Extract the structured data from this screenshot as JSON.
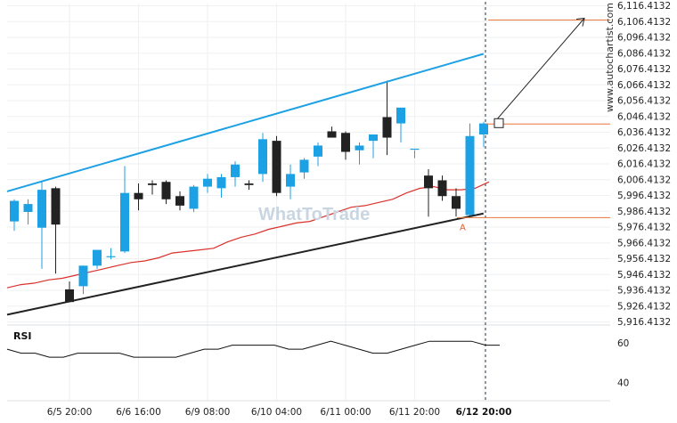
{
  "chart_data": {
    "type": "candlestick",
    "y_ticks": [
      "6,116.4132",
      "6,106.4132",
      "6,096.4132",
      "6,086.4132",
      "6,076.4132",
      "6,066.4132",
      "6,056.4132",
      "6,046.4132",
      "6,036.4132",
      "6,026.4132",
      "6,016.4132",
      "6,006.4132",
      "5,996.4132",
      "5,986.4132",
      "5,976.4132",
      "5,966.4132",
      "5,956.4132",
      "5,946.4132",
      "5,936.4132",
      "5,926.4132",
      "5,916.4132"
    ],
    "y_tick_values": [
      6116.4132,
      6106.4132,
      6096.4132,
      6086.4132,
      6076.4132,
      6066.4132,
      6056.4132,
      6046.4132,
      6036.4132,
      6026.4132,
      6016.4132,
      6006.4132,
      5996.4132,
      5986.4132,
      5976.4132,
      5966.4132,
      5956.4132,
      5946.4132,
      5936.4132,
      5926.4132,
      5916.4132
    ],
    "ylim": [
      5911.0,
      6120.0
    ],
    "x_labels": [
      "6/5 20:00",
      "6/6 16:00",
      "6/9 08:00",
      "6/10 04:00",
      "6/11 00:00",
      "6/11 20:00",
      "6/12 20:00"
    ],
    "x_label_index": [
      4,
      9,
      14,
      19,
      24,
      29,
      34
    ],
    "highlighted_x_label": "6/12 20:00",
    "candles": [
      {
        "o": 5980,
        "h": 5994,
        "l": 5974,
        "c": 5993
      },
      {
        "o": 5986,
        "h": 5994,
        "l": 5978,
        "c": 5991
      },
      {
        "o": 5976,
        "h": 6005,
        "l": 5950,
        "c": 6000
      },
      {
        "o": 6001,
        "h": 6002,
        "l": 5947,
        "c": 5978
      },
      {
        "o": 5937,
        "h": 5942,
        "l": 5930,
        "c": 5929
      },
      {
        "o": 5939,
        "h": 5952,
        "l": 5934,
        "c": 5952
      },
      {
        "o": 5952,
        "h": 5962,
        "l": 5950,
        "c": 5962
      },
      {
        "o": 5958,
        "h": 5963,
        "l": 5956,
        "c": 5958
      },
      {
        "o": 5961,
        "h": 6015,
        "l": 5960,
        "c": 5998
      },
      {
        "o": 5998,
        "h": 6004,
        "l": 5987,
        "c": 5994
      },
      {
        "o": 6004,
        "h": 6006,
        "l": 5997,
        "c": 6003
      },
      {
        "o": 6005,
        "h": 6006,
        "l": 5991,
        "c": 5994
      },
      {
        "o": 5996,
        "h": 5999,
        "l": 5987,
        "c": 5990
      },
      {
        "o": 5988,
        "h": 6003,
        "l": 5986,
        "c": 6002
      },
      {
        "o": 6002,
        "h": 6010,
        "l": 5998,
        "c": 6007
      },
      {
        "o": 6001,
        "h": 6010,
        "l": 5995,
        "c": 6008
      },
      {
        "o": 6008,
        "h": 6018,
        "l": 6002,
        "c": 6016
      },
      {
        "o": 6004,
        "h": 6006,
        "l": 6000,
        "c": 6003
      },
      {
        "o": 6010,
        "h": 6036,
        "l": 6005,
        "c": 6032
      },
      {
        "o": 6031,
        "h": 6034,
        "l": 5996,
        "c": 5998
      },
      {
        "o": 6002,
        "h": 6016,
        "l": 5994,
        "c": 6010
      },
      {
        "o": 6011,
        "h": 6020,
        "l": 6007,
        "c": 6019
      },
      {
        "o": 6021,
        "h": 6030,
        "l": 6015,
        "c": 6028
      },
      {
        "o": 6037,
        "h": 6040,
        "l": 6034,
        "c": 6033
      },
      {
        "o": 6036,
        "h": 6037,
        "l": 6019,
        "c": 6024
      },
      {
        "o": 6025,
        "h": 6030,
        "l": 6016,
        "c": 6028
      },
      {
        "o": 6031,
        "h": 6034,
        "l": 6020,
        "c": 6035
      },
      {
        "o": 6046,
        "h": 6069,
        "l": 6022,
        "c": 6033
      },
      {
        "o": 6042,
        "h": 6051,
        "l": 6030,
        "c": 6052
      },
      {
        "o": 6026,
        "h": 6025,
        "l": 6020,
        "c": 6026
      },
      {
        "o": 6009,
        "h": 6013,
        "l": 5983,
        "c": 6001
      },
      {
        "o": 6006,
        "h": 6009,
        "l": 5993,
        "c": 5996
      },
      {
        "o": 5996,
        "h": 6001,
        "l": 5983,
        "c": 5988
      },
      {
        "o": 5984,
        "h": 6042,
        "l": 5983,
        "c": 6034
      },
      {
        "o": 6035,
        "h": 6043,
        "l": 6027,
        "c": 6042
      }
    ],
    "moving_average": [
      5938,
      5940,
      5941,
      5943,
      5944,
      5946,
      5948,
      5950,
      5952,
      5954,
      5955,
      5957,
      5960,
      5961,
      5962,
      5963,
      5967,
      5970,
      5972,
      5975,
      5977,
      5979,
      5980,
      5983,
      5986,
      5989,
      5990,
      5992,
      5994,
      5998,
      6001,
      6002,
      6000,
      6000,
      6001,
      6005
    ],
    "channel_upper": {
      "from": [
        0,
        5999
      ],
      "to": [
        34.5,
        6086
      ]
    },
    "channel_lower": {
      "from": [
        0,
        5921
      ],
      "to": [
        34.5,
        5985
      ]
    },
    "target_level": 6107.4,
    "current_level": 6041.6,
    "support_level": 5982.4,
    "point_label": "A",
    "rsi": {
      "label": "RSI",
      "y_ticks": [
        "60",
        "40"
      ],
      "y_tick_values": [
        60,
        40
      ],
      "ylim": [
        32,
        66
      ],
      "values": [
        57,
        55,
        55,
        53,
        53,
        55,
        55,
        55,
        55,
        53,
        53,
        53,
        53,
        55,
        57,
        57,
        59,
        59,
        59,
        59,
        57,
        57,
        59,
        61,
        59,
        57,
        55,
        55,
        57,
        59,
        61,
        61,
        61,
        61,
        59,
        59
      ]
    },
    "watermark": "www.autochartist.com",
    "brand": "WhatToTrade",
    "colors": {
      "bull": "#1ca1e4",
      "bear": "#222222",
      "channel_upper": "#1ca1e4",
      "channel_lower": "#222222",
      "moving_average": "#d9312b",
      "levels": "#e8773a",
      "rsi": "#111111"
    }
  }
}
